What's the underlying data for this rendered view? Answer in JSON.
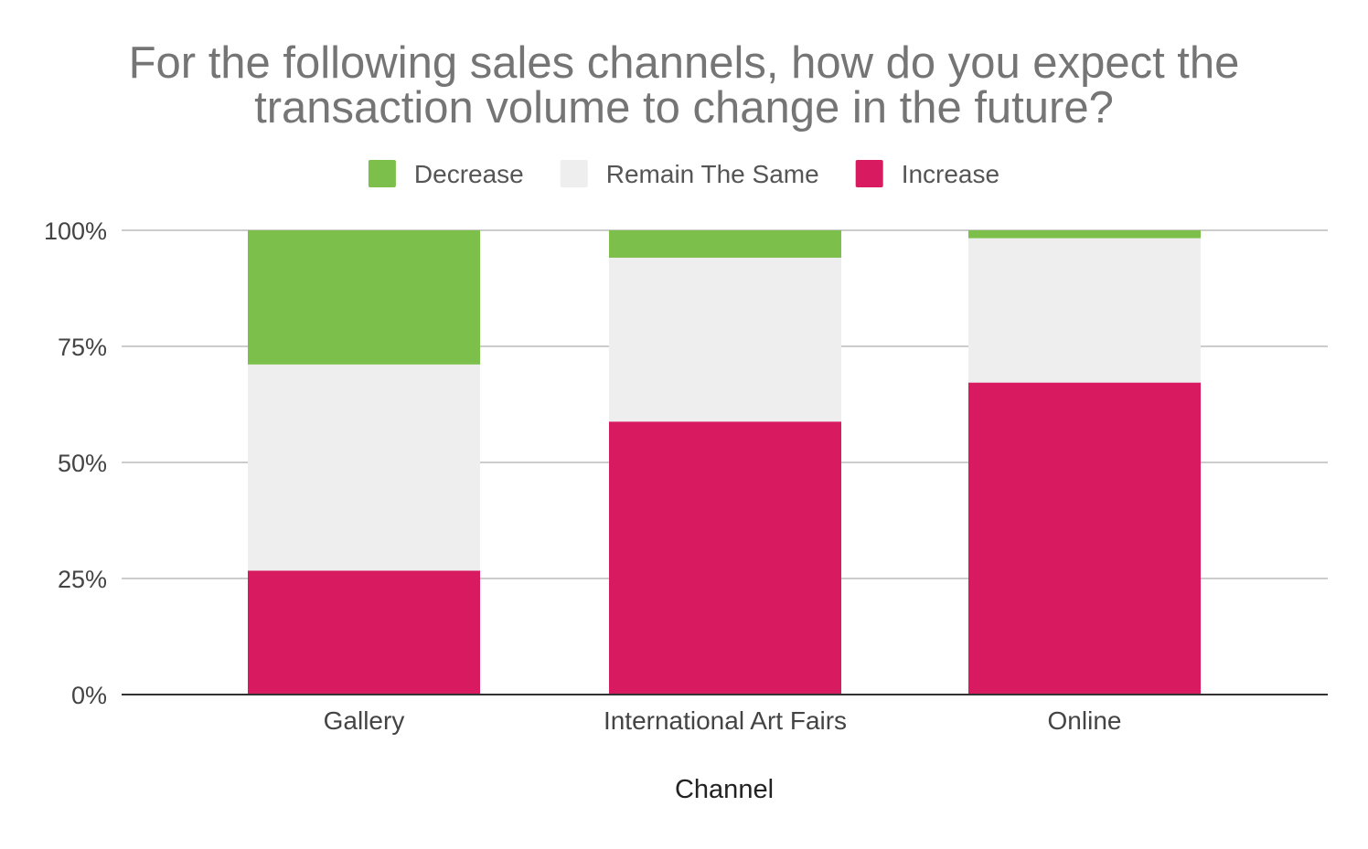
{
  "chart_data": {
    "type": "bar",
    "stacked": true,
    "percent_stacked": true,
    "title": "For the following sales channels, how do you expect the transaction volume to change in the future?",
    "xlabel": "Channel",
    "ylabel": "",
    "categories": [
      "Gallery",
      "International Art Fairs",
      "Online"
    ],
    "series": [
      {
        "name": "Increase",
        "color": "#d81b60",
        "values": [
          26.7,
          58.8,
          67.2
        ]
      },
      {
        "name": "Remain The Same",
        "color": "#eeeeee",
        "values": [
          44.4,
          35.3,
          31.1
        ]
      },
      {
        "name": "Decrease",
        "color": "#7cbf4b",
        "values": [
          28.9,
          5.9,
          1.7
        ]
      }
    ],
    "legend_order": [
      "Decrease",
      "Remain The Same",
      "Increase"
    ],
    "legend_position": "top",
    "ylim": [
      0,
      100
    ],
    "yticks": [
      "0%",
      "25%",
      "50%",
      "75%",
      "100%"
    ],
    "ytick_values": [
      0,
      25,
      50,
      75,
      100
    ],
    "grid": true
  }
}
